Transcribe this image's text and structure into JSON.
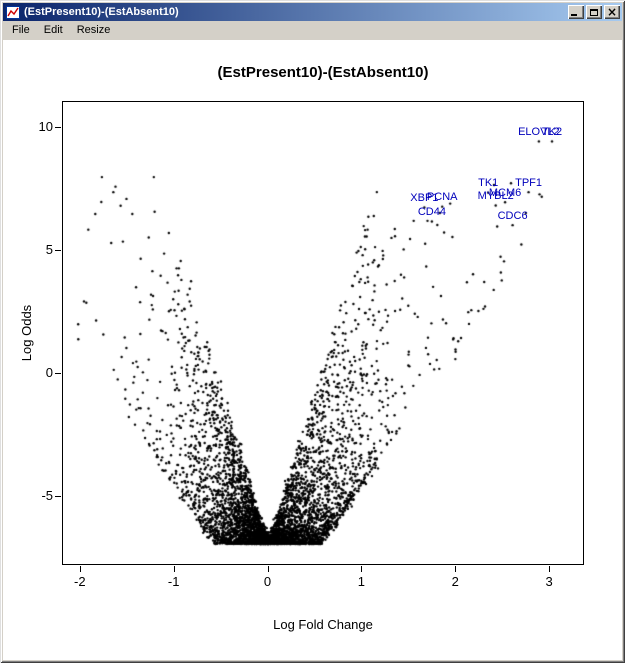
{
  "window": {
    "title": "(EstPresent10)-(EstAbsent10)",
    "controls": {
      "close_glyph": "×"
    }
  },
  "menu": {
    "items": [
      "File",
      "Edit",
      "Resize"
    ]
  },
  "chart_data": {
    "type": "scatter",
    "title": "(EstPresent10)-(EstAbsent10)",
    "xlabel": "Log Fold Change",
    "ylabel": "Log Odds",
    "xlim": [
      -2.19,
      3.35
    ],
    "ylim": [
      -7.71,
      11.05
    ],
    "x_ticks": [
      -2,
      -1,
      0,
      1,
      2,
      3
    ],
    "y_ticks": [
      -5,
      0,
      5,
      10
    ],
    "grid": false,
    "point_color": "#000000",
    "label_color": "#0000bb",
    "labeled_genes": [
      {
        "name": "ELOVL2",
        "x": 2.88,
        "y": 9.8
      },
      {
        "name": "TK2",
        "x": 3.02,
        "y": 9.8
      },
      {
        "name": "TK1",
        "x": 2.34,
        "y": 7.72
      },
      {
        "name": "TPF1",
        "x": 2.77,
        "y": 7.74
      },
      {
        "name": "MCM6",
        "x": 2.52,
        "y": 7.33
      },
      {
        "name": "MYBL2",
        "x": 2.42,
        "y": 7.2
      },
      {
        "name": "PCNA",
        "x": 1.85,
        "y": 7.15
      },
      {
        "name": "XBP1",
        "x": 1.66,
        "y": 7.12
      },
      {
        "name": "CD44",
        "x": 1.74,
        "y": 6.55
      },
      {
        "name": "CDC6",
        "x": 2.6,
        "y": 6.4
      }
    ],
    "scatter_cloud": {
      "description": "volcano-shaped cloud of ~5000 genes, dense funnel vertex near (0,-6.9), right arm extends to x~3, left arm to x~-1.9",
      "n_points": 5000,
      "seed": 42,
      "x_sd": 0.42,
      "tail_frac": 0.12,
      "tail_sd": 0.85,
      "right_skew": 1.25,
      "x_range": [
        -2.05,
        3.1
      ],
      "vertex_y": -6.9,
      "y_max": 8.0,
      "envelope": {
        "lo_start": 0.55,
        "lo_slope": 5.5,
        "hi_slope": 12.5,
        "density_power": 2.2,
        "jitter": 0.18
      }
    }
  }
}
